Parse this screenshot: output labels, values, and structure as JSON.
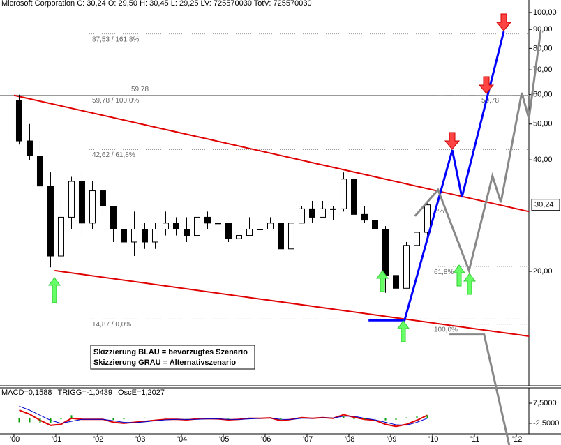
{
  "chart_data": [
    {
      "type": "candlestick",
      "title": "Microsoft Corporation C: 30,24 O: 29,50 H: 30,45 L: 29,25 LV: 725570030 TotV: 725570030",
      "log_scale": true,
      "xlim": [
        1999.667,
        2012.3
      ],
      "xticks": [
        {
          "value": 2000,
          "label": "'00"
        },
        {
          "value": 2001,
          "label": "'01"
        },
        {
          "value": 2002,
          "label": "'02"
        },
        {
          "value": 2003,
          "label": "'03"
        },
        {
          "value": 2004,
          "label": "'04"
        },
        {
          "value": 2005,
          "label": "'05"
        },
        {
          "value": 2006,
          "label": "'06"
        },
        {
          "value": 2007,
          "label": "'07"
        },
        {
          "value": 2008,
          "label": "'08"
        },
        {
          "value": 2009,
          "label": "'09"
        },
        {
          "value": 2010,
          "label": "'10"
        },
        {
          "value": 2011,
          "label": "'11"
        },
        {
          "value": 2012,
          "label": "'12"
        }
      ],
      "ylim": [
        9.82,
        104.4
      ],
      "yticks": [
        {
          "value": 100,
          "label": "100,00"
        },
        {
          "value": 90,
          "label": "90,00"
        },
        {
          "value": 80,
          "label": "80,00"
        },
        {
          "value": 70,
          "label": "70,00"
        },
        {
          "value": 60,
          "label": "60,00"
        },
        {
          "value": 50,
          "label": "50,00"
        },
        {
          "value": 40,
          "label": "40,00"
        },
        {
          "value": 20,
          "label": "20,00"
        }
      ],
      "up_color": "#ffffff",
      "down_color": "#000000",
      "x": [
        2000.125,
        2000.375,
        2000.625,
        2000.875,
        2001.125,
        2001.375,
        2001.625,
        2001.875,
        2002.125,
        2002.375,
        2002.625,
        2002.875,
        2003.125,
        2003.375,
        2003.625,
        2003.875,
        2004.125,
        2004.375,
        2004.625,
        2004.875,
        2005.125,
        2005.375,
        2005.625,
        2005.875,
        2006.125,
        2006.375,
        2006.625,
        2006.875,
        2007.125,
        2007.375,
        2007.625,
        2007.875,
        2008.125,
        2008.375,
        2008.625,
        2008.875,
        2009.125,
        2009.375,
        2009.625,
        2009.875
      ],
      "open": [
        58,
        45,
        41,
        34,
        22,
        28,
        35,
        27,
        33,
        30,
        26,
        24,
        26,
        24,
        26,
        27,
        26,
        25,
        28,
        27,
        27,
        24.5,
        25,
        26,
        26,
        27,
        23,
        27,
        29.5,
        28,
        29.5,
        29.5,
        35.5,
        28.5,
        27.5,
        26,
        19.5,
        18,
        23.5,
        25.5
      ],
      "high": [
        60,
        50,
        45,
        37,
        31,
        36,
        37,
        35,
        34,
        30,
        27,
        29,
        27,
        27,
        29,
        28,
        28,
        29,
        29,
        29,
        27,
        26,
        28,
        28,
        28,
        27.5,
        27,
        30,
        31,
        31,
        30,
        37,
        36,
        30,
        28.5,
        26.5,
        21,
        24,
        26,
        31
      ],
      "low": [
        44,
        40,
        33,
        20.5,
        21,
        26,
        25,
        26,
        28,
        24,
        21,
        22,
        23,
        23,
        25,
        25,
        24,
        24,
        26,
        26,
        24,
        24,
        25,
        24,
        26,
        21.5,
        23,
        27,
        27,
        28,
        27.5,
        29,
        27,
        27,
        23.5,
        17.5,
        15.2,
        18,
        22,
        25
      ],
      "close": [
        45,
        41,
        34,
        22,
        28,
        35,
        27,
        33,
        30,
        26,
        24,
        26,
        24,
        26,
        27,
        26,
        25,
        28,
        27,
        27,
        24.5,
        25,
        26,
        26,
        27,
        23,
        27,
        29.5,
        28,
        29.5,
        29.5,
        35.5,
        28.5,
        27.5,
        26,
        19.5,
        18,
        23.5,
        25.5,
        30.24
      ],
      "last_price": 30.24,
      "last_price_label": "30,24",
      "high_line": {
        "value": 59.78,
        "label": "59,78"
      },
      "levels": [
        {
          "value": 87.53,
          "label": "87,53 / 161,8%"
        },
        {
          "value": 59.78,
          "label": "59,78 / 100,0%"
        },
        {
          "value": 42.62,
          "label": "42,62 / 61,8%"
        },
        {
          "value": 14.87,
          "label": "14,87 / 0,0%"
        }
      ],
      "right_levels": [
        {
          "value": 59.78,
          "label": "59,78"
        },
        {
          "value": 30.0,
          "label": "0%"
        },
        {
          "value": 20.6,
          "label": "61,8%"
        },
        {
          "value": 14.4,
          "label": "100,0%"
        }
      ],
      "trendlines": [
        {
          "color": "#e00000",
          "x": [
            2000,
            2012.3
          ],
          "values": [
            59.78,
            29.0
          ]
        },
        {
          "color": "#e00000",
          "x": [
            2000.97,
            2012.3
          ],
          "values": [
            20.1,
            13.36
          ]
        }
      ],
      "scenarios": [
        {
          "color": "#0000ff",
          "x": [
            2008.47,
            2009.33,
            2010.47,
            2010.7,
            2011.7
          ],
          "values": [
            14.75,
            14.75,
            42.5,
            31.7,
            88.9
          ]
        },
        {
          "color": "#888888",
          "x": [
            2009.58,
            2010.13,
            2010.87,
            2011.43,
            2011.63,
            2012.13,
            2012.3,
            2012.58
          ],
          "values": [
            28.2,
            33.2,
            20.1,
            36.2,
            30.7,
            60.7,
            51.7,
            88.9
          ]
        },
        {
          "color": "#888888",
          "x": [
            2010.4,
            2011.23,
            2011.83
          ],
          "values": [
            13.5,
            13.5,
            6.79
          ]
        }
      ],
      "annotations": [
        "Skizzierung BLAU = bevorzugtes Szenario",
        "Skizzierung GRAU = Alternativszenario"
      ]
    },
    {
      "type": "line",
      "ylim": [
        -7.7,
        15.1
      ],
      "yticks": [
        {
          "value": 7.5,
          "label": "7,5000"
        },
        {
          "value": -2.5,
          "label": "-2,5000"
        }
      ],
      "x": [
        2000.125,
        2000.375,
        2000.625,
        2000.875,
        2001.125,
        2001.375,
        2001.625,
        2001.875,
        2002.125,
        2002.375,
        2002.625,
        2002.875,
        2003.125,
        2003.375,
        2003.625,
        2003.875,
        2004.125,
        2004.375,
        2004.625,
        2004.875,
        2005.125,
        2005.375,
        2005.625,
        2005.875,
        2006.125,
        2006.375,
        2006.625,
        2006.875,
        2007.125,
        2007.375,
        2007.625,
        2007.875,
        2008.125,
        2008.375,
        2008.625,
        2008.875,
        2009.125,
        2009.375,
        2009.625,
        2009.875
      ],
      "series": [
        {
          "name": "MACD=0,1588",
          "color": "#e00000",
          "values": [
            4,
            2,
            -1,
            -3.5,
            -3,
            0,
            -0.5,
            -0.5,
            -0.5,
            -2,
            -2.5,
            -2,
            -1.5,
            -1,
            -0.5,
            -0.5,
            -0.8,
            -0.3,
            -0.2,
            -0.3,
            -0.8,
            -0.5,
            0,
            0,
            0.2,
            -1.2,
            -0.5,
            0.3,
            0,
            0.3,
            0,
            1.8,
            0.5,
            -0.5,
            -1,
            -3,
            -4,
            -3,
            -1,
            1.5
          ]
        },
        {
          "name": "TRIGG=-1,0439",
          "color": "#0000cc",
          "values": [
            6,
            4,
            1.5,
            -1,
            -2.5,
            -1.5,
            -0.5,
            -0.5,
            -0.5,
            -1.2,
            -2,
            -2.2,
            -1.8,
            -1.2,
            -0.8,
            -0.5,
            -0.6,
            -0.5,
            -0.3,
            -0.3,
            -0.5,
            -0.6,
            -0.3,
            0,
            0.1,
            -0.5,
            -0.6,
            0,
            0,
            0.2,
            0.1,
            1,
            1,
            0,
            -0.8,
            -2,
            -3.2,
            -3.4,
            -2,
            0
          ]
        },
        {
          "name": "OscE=1,2027",
          "color": "#00a000",
          "type": "bar",
          "values": [
            -2,
            -2,
            -2.5,
            -2.5,
            -0.5,
            1.5,
            0,
            0,
            0,
            -0.8,
            -0.5,
            0.2,
            0.3,
            0.2,
            0.3,
            0,
            -0.2,
            0.2,
            0.1,
            0,
            -0.3,
            0.1,
            0.3,
            0,
            0.1,
            -0.7,
            0.1,
            0.3,
            0,
            0.1,
            -0.1,
            0.8,
            -0.5,
            -0.5,
            -0.2,
            -1,
            -0.8,
            0.4,
            1,
            1.5
          ]
        }
      ]
    }
  ]
}
